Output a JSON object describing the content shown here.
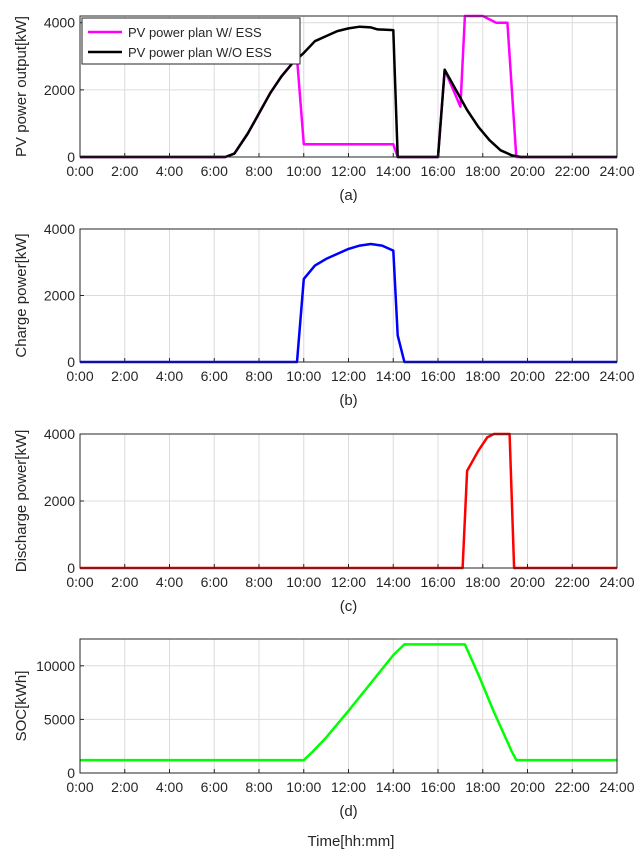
{
  "figure": {
    "xlabel": "Time[hh:mm]",
    "x_ticks": [
      "0:00",
      "2:00",
      "4:00",
      "6:00",
      "8:00",
      "10:00",
      "12:00",
      "14:00",
      "16:00",
      "18:00",
      "20:00",
      "22:00",
      "24:00"
    ],
    "xlim": [
      0,
      24
    ],
    "grid": true
  },
  "chart_data": [
    {
      "type": "line",
      "subplot": "(a)",
      "ylabel": "PV power output[kW]",
      "ylim": [
        0,
        4200
      ],
      "y_ticks": [
        0,
        2000,
        4000
      ],
      "legend_position": "top-left",
      "series": [
        {
          "name": "PV power plan W/ ESS",
          "color": "#ff00ff",
          "points": [
            [
              0,
              0
            ],
            [
              6.5,
              0
            ],
            [
              6.9,
              100
            ],
            [
              7.5,
              700
            ],
            [
              8,
              1300
            ],
            [
              8.5,
              1900
            ],
            [
              9,
              2400
            ],
            [
              9.5,
              2800
            ],
            [
              9.7,
              2950
            ],
            [
              10,
              380
            ],
            [
              14,
              380
            ],
            [
              14.2,
              0
            ],
            [
              16,
              0
            ],
            [
              16.3,
              2600
            ],
            [
              17,
              1500
            ],
            [
              17.2,
              4200
            ],
            [
              18,
              4200
            ],
            [
              18.3,
              4100
            ],
            [
              18.6,
              4000
            ],
            [
              19.1,
              4000
            ],
            [
              19.5,
              0
            ],
            [
              24,
              0
            ]
          ]
        },
        {
          "name": "PV power plan W/O ESS",
          "color": "#000000",
          "points": [
            [
              0,
              0
            ],
            [
              6.5,
              0
            ],
            [
              6.9,
              100
            ],
            [
              7.5,
              700
            ],
            [
              8,
              1300
            ],
            [
              8.5,
              1900
            ],
            [
              9,
              2400
            ],
            [
              9.5,
              2800
            ],
            [
              10,
              3100
            ],
            [
              10.5,
              3450
            ],
            [
              11,
              3600
            ],
            [
              11.5,
              3750
            ],
            [
              12,
              3830
            ],
            [
              12.5,
              3880
            ],
            [
              13,
              3860
            ],
            [
              13.3,
              3800
            ],
            [
              14,
              3780
            ],
            [
              14.2,
              0
            ],
            [
              16,
              0
            ],
            [
              16.3,
              2600
            ],
            [
              16.8,
              2000
            ],
            [
              17.3,
              1400
            ],
            [
              17.8,
              900
            ],
            [
              18.3,
              500
            ],
            [
              18.8,
              200
            ],
            [
              19.3,
              50
            ],
            [
              19.7,
              0
            ],
            [
              24,
              0
            ]
          ]
        }
      ]
    },
    {
      "type": "line",
      "subplot": "(b)",
      "ylabel": "Charge power[kW]",
      "ylim": [
        0,
        4000
      ],
      "y_ticks": [
        0,
        2000,
        4000
      ],
      "series": [
        {
          "color": "#0000ff",
          "points": [
            [
              0,
              0
            ],
            [
              9.7,
              0
            ],
            [
              10,
              2500
            ],
            [
              10.5,
              2900
            ],
            [
              11,
              3100
            ],
            [
              11.5,
              3250
            ],
            [
              12,
              3400
            ],
            [
              12.5,
              3500
            ],
            [
              13,
              3550
            ],
            [
              13.5,
              3500
            ],
            [
              14,
              3350
            ],
            [
              14.2,
              800
            ],
            [
              14.5,
              0
            ],
            [
              24,
              0
            ]
          ]
        }
      ]
    },
    {
      "type": "line",
      "subplot": "(c)",
      "ylabel": "Discharge power[kW]",
      "ylim": [
        0,
        4000
      ],
      "y_ticks": [
        0,
        2000,
        4000
      ],
      "series": [
        {
          "color": "#ff0000",
          "points": [
            [
              0,
              0
            ],
            [
              17.1,
              0
            ],
            [
              17.3,
              2900
            ],
            [
              17.8,
              3500
            ],
            [
              18.2,
              3900
            ],
            [
              18.5,
              4000
            ],
            [
              19.2,
              4000
            ],
            [
              19.4,
              0
            ],
            [
              24,
              0
            ]
          ]
        }
      ]
    },
    {
      "type": "line",
      "subplot": "(d)",
      "ylabel": "SOC[kWh]",
      "ylim": [
        0,
        12500
      ],
      "y_ticks": [
        0,
        5000,
        10000
      ],
      "series": [
        {
          "color": "#00ff00",
          "points": [
            [
              0,
              1200
            ],
            [
              10,
              1200
            ],
            [
              10.4,
              2000
            ],
            [
              11,
              3300
            ],
            [
              12,
              5800
            ],
            [
              13,
              8400
            ],
            [
              14,
              11000
            ],
            [
              14.5,
              12000
            ],
            [
              17.2,
              12000
            ],
            [
              17.8,
              9200
            ],
            [
              18.5,
              5700
            ],
            [
              19.3,
              2000
            ],
            [
              19.5,
              1200
            ],
            [
              24,
              1200
            ]
          ]
        }
      ]
    }
  ]
}
